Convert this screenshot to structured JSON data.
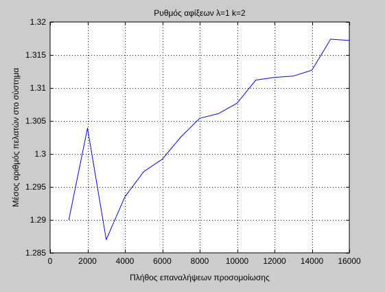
{
  "chart_data": {
    "type": "line",
    "title": "Ρυθμός αφίξεων λ=1 k=2",
    "xlabel": "Πλήθος επαναλήψεων προσομοίωσης",
    "ylabel": "Μέσος αριθμός πελατών στο σύστημα",
    "xlim": [
      0,
      16000
    ],
    "ylim": [
      1.285,
      1.32
    ],
    "grid": true,
    "x_ticks": [
      0,
      2000,
      4000,
      6000,
      8000,
      10000,
      12000,
      14000,
      16000
    ],
    "x_tick_labels": [
      "0",
      "2000",
      "4000",
      "6000",
      "8000",
      "10000",
      "12000",
      "14000",
      "16000"
    ],
    "y_ticks": [
      1.285,
      1.29,
      1.295,
      1.3,
      1.305,
      1.31,
      1.315,
      1.32
    ],
    "y_tick_labels": [
      "1.285",
      "1.29",
      "1.295",
      "1.3",
      "1.305",
      "1.31",
      "1.315",
      "1.32"
    ],
    "series": [
      {
        "color": "#0000ff",
        "x": [
          1000,
          2000,
          3000,
          4000,
          5000,
          6000,
          7000,
          8000,
          9000,
          10000,
          11000,
          12000,
          13000,
          14000,
          15000,
          16000
        ],
        "y": [
          1.29,
          1.3039,
          1.287,
          1.2935,
          1.2973,
          1.2992,
          1.3026,
          1.3054,
          1.3061,
          1.3077,
          1.3112,
          1.3116,
          1.3118,
          1.3127,
          1.3174,
          1.3172
        ]
      }
    ]
  }
}
